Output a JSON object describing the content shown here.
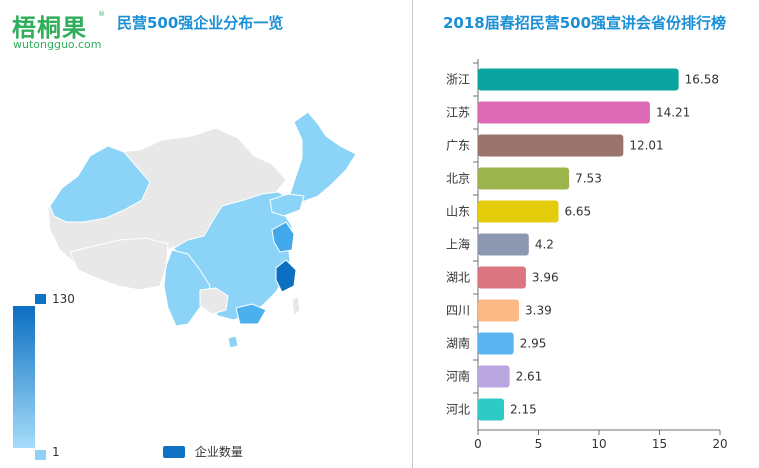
{
  "logo": {
    "main": "梧桐果",
    "reg": "®",
    "sub": "wutongguo.com"
  },
  "map_panel": {
    "title": "民营500强企业分布一览",
    "visual_map": {
      "max_label": "130",
      "min_label": "1",
      "max": 130,
      "min": 1,
      "color_low": "#a6dcfa",
      "color_high": "#0b6fc2"
    },
    "legend_label": "企业数量"
  },
  "chart_panel": {
    "title": "2018届春招民营500强宣讲会省份排行榜"
  },
  "chart_data": {
    "type": "bar",
    "orientation": "horizontal",
    "title": "2018届春招民营500强宣讲会省份排行榜",
    "categories": [
      "浙江",
      "江苏",
      "广东",
      "北京",
      "山东",
      "上海",
      "湖北",
      "四川",
      "湖南",
      "河南",
      "河北"
    ],
    "values": [
      16.58,
      14.21,
      12.01,
      7.53,
      6.65,
      4.2,
      3.96,
      3.39,
      2.95,
      2.61,
      2.15
    ],
    "value_labels": [
      "16.58",
      "14.21",
      "12.01",
      "7.53",
      "6.65",
      "4.2",
      "3.96",
      "3.39",
      "2.95",
      "2.61",
      "2.15"
    ],
    "colors": [
      "#0aa39e",
      "#de69b4",
      "#9a736c",
      "#9bb54c",
      "#e4cc0a",
      "#8c97b0",
      "#db7680",
      "#fcb885",
      "#5bb4f1",
      "#b9a6e0",
      "#2ecac6"
    ],
    "xlim": [
      0,
      20
    ],
    "xticks": [
      0,
      5,
      10,
      15,
      20
    ],
    "xtick_labels": [
      "0",
      "5",
      "10",
      "15",
      "20"
    ],
    "grid": false
  }
}
